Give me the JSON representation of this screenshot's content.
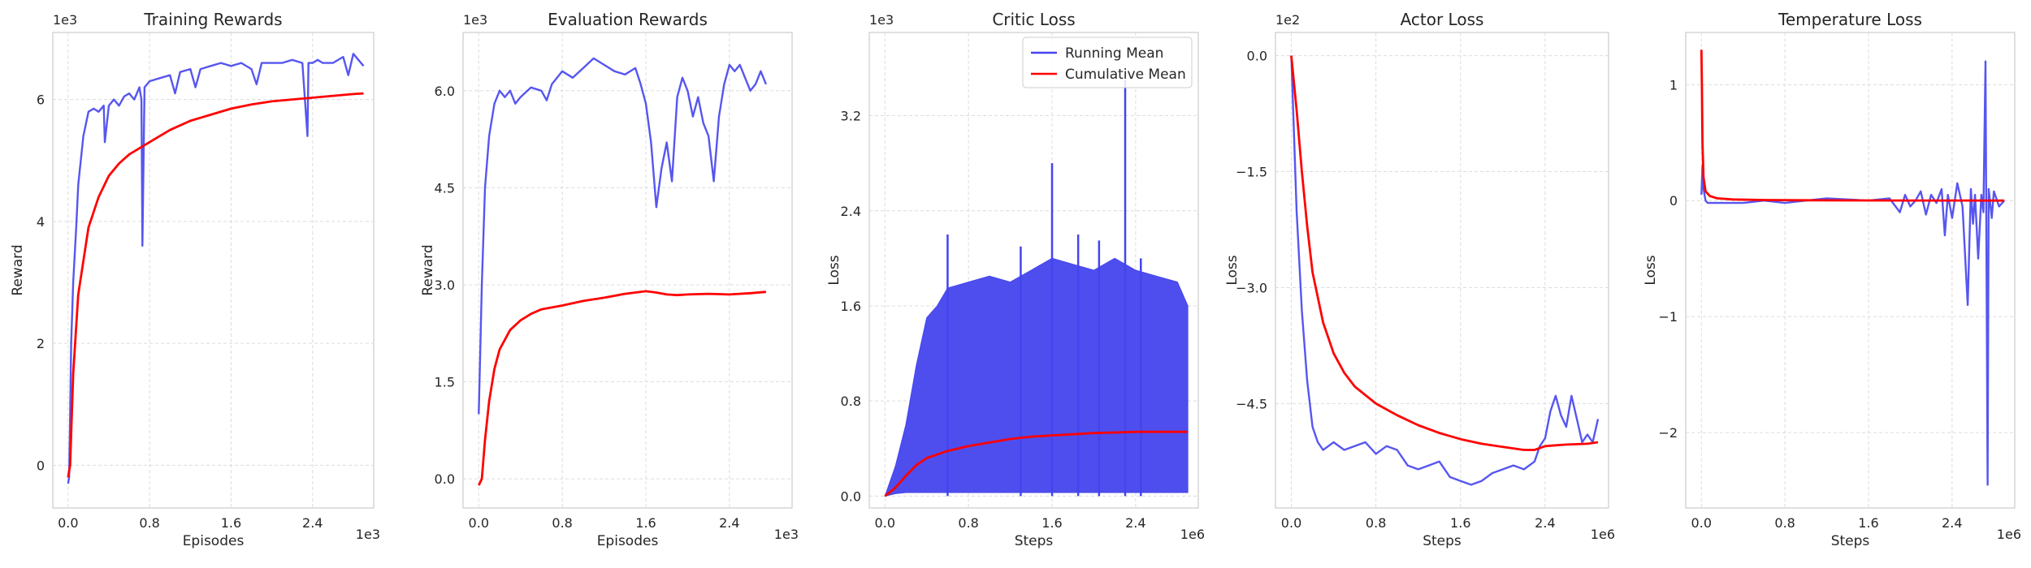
{
  "colors": {
    "running": "#4444ee",
    "cumulative": "#ff0000"
  },
  "chart_data": [
    {
      "type": "line",
      "title": "Training Rewards",
      "xlabel": "Episodes",
      "ylabel": "Reward",
      "x_exponent": "1e3",
      "y_exponent": "1e3",
      "xlim": [
        -0.15,
        3.0
      ],
      "ylim": [
        -0.7,
        7.1
      ],
      "xticks": [
        0.0,
        0.8,
        1.6,
        2.4
      ],
      "xtick_labels": [
        "0.0",
        "0.8",
        "1.6",
        "2.4"
      ],
      "yticks": [
        0,
        2,
        4,
        6
      ],
      "ytick_labels": [
        "0",
        "2",
        "4",
        "6"
      ],
      "grid": true,
      "series": [
        {
          "key": "running",
          "x": [
            0.0,
            0.01,
            0.02,
            0.03,
            0.05,
            0.08,
            0.1,
            0.15,
            0.2,
            0.25,
            0.3,
            0.35,
            0.36,
            0.4,
            0.45,
            0.5,
            0.55,
            0.6,
            0.65,
            0.7,
            0.72,
            0.73,
            0.75,
            0.8,
            0.9,
            1.0,
            1.05,
            1.1,
            1.2,
            1.25,
            1.3,
            1.4,
            1.5,
            1.6,
            1.7,
            1.8,
            1.85,
            1.9,
            2.0,
            2.1,
            2.2,
            2.3,
            2.35,
            2.36,
            2.4,
            2.45,
            2.5,
            2.6,
            2.7,
            2.75,
            2.8,
            2.9
          ],
          "y": [
            -0.3,
            -0.2,
            0.8,
            2.0,
            3.0,
            3.9,
            4.6,
            5.4,
            5.8,
            5.85,
            5.8,
            5.9,
            5.3,
            5.9,
            6.0,
            5.9,
            6.05,
            6.1,
            6.0,
            6.2,
            6.0,
            3.6,
            6.2,
            6.3,
            6.35,
            6.4,
            6.1,
            6.45,
            6.5,
            6.2,
            6.5,
            6.55,
            6.6,
            6.55,
            6.6,
            6.5,
            6.25,
            6.6,
            6.6,
            6.6,
            6.65,
            6.6,
            5.4,
            6.6,
            6.6,
            6.65,
            6.6,
            6.6,
            6.7,
            6.4,
            6.75,
            6.55
          ]
        },
        {
          "key": "cumulative",
          "x": [
            0.0,
            0.02,
            0.05,
            0.1,
            0.2,
            0.3,
            0.4,
            0.5,
            0.6,
            0.8,
            1.0,
            1.2,
            1.4,
            1.6,
            1.8,
            2.0,
            2.2,
            2.4,
            2.6,
            2.8,
            2.9
          ],
          "y": [
            -0.2,
            0.0,
            1.5,
            2.8,
            3.9,
            4.4,
            4.75,
            4.95,
            5.1,
            5.3,
            5.5,
            5.65,
            5.75,
            5.85,
            5.92,
            5.97,
            6.0,
            6.03,
            6.06,
            6.09,
            6.1
          ]
        }
      ]
    },
    {
      "type": "line",
      "title": "Evaluation Rewards",
      "xlabel": "Episodes",
      "ylabel": "Reward",
      "x_exponent": "1e3",
      "y_exponent": "1e3",
      "xlim": [
        -0.15,
        3.0
      ],
      "ylim": [
        -0.45,
        6.9
      ],
      "xticks": [
        0.0,
        0.8,
        1.6,
        2.4
      ],
      "xtick_labels": [
        "0.0",
        "0.8",
        "1.6",
        "2.4"
      ],
      "yticks": [
        0.0,
        1.5,
        3.0,
        4.5,
        6.0
      ],
      "ytick_labels": [
        "0.0",
        "1.5",
        "3.0",
        "4.5",
        "6.0"
      ],
      "grid": true,
      "series": [
        {
          "key": "running",
          "x": [
            0.0,
            0.03,
            0.06,
            0.1,
            0.15,
            0.2,
            0.25,
            0.3,
            0.35,
            0.4,
            0.5,
            0.6,
            0.65,
            0.7,
            0.8,
            0.9,
            1.0,
            1.1,
            1.2,
            1.3,
            1.4,
            1.5,
            1.55,
            1.6,
            1.65,
            1.7,
            1.75,
            1.8,
            1.85,
            1.9,
            1.95,
            2.0,
            2.05,
            2.1,
            2.15,
            2.2,
            2.25,
            2.3,
            2.35,
            2.4,
            2.45,
            2.5,
            2.55,
            2.6,
            2.65,
            2.7,
            2.75
          ],
          "y": [
            1.0,
            3.0,
            4.5,
            5.3,
            5.8,
            6.0,
            5.9,
            6.0,
            5.8,
            5.9,
            6.05,
            6.0,
            5.85,
            6.1,
            6.3,
            6.2,
            6.35,
            6.5,
            6.4,
            6.3,
            6.25,
            6.35,
            6.1,
            5.8,
            5.2,
            4.2,
            4.8,
            5.2,
            4.6,
            5.9,
            6.2,
            6.0,
            5.6,
            5.9,
            5.5,
            5.3,
            4.6,
            5.6,
            6.1,
            6.4,
            6.3,
            6.4,
            6.2,
            6.0,
            6.1,
            6.3,
            6.1
          ]
        },
        {
          "key": "cumulative",
          "x": [
            0.0,
            0.03,
            0.06,
            0.1,
            0.15,
            0.2,
            0.3,
            0.4,
            0.5,
            0.6,
            0.8,
            1.0,
            1.2,
            1.4,
            1.6,
            1.7,
            1.8,
            1.9,
            2.0,
            2.2,
            2.4,
            2.6,
            2.75
          ],
          "y": [
            -0.1,
            0.0,
            0.6,
            1.2,
            1.7,
            2.0,
            2.3,
            2.45,
            2.55,
            2.62,
            2.68,
            2.75,
            2.8,
            2.86,
            2.9,
            2.88,
            2.85,
            2.84,
            2.85,
            2.86,
            2.85,
            2.87,
            2.89
          ]
        }
      ]
    },
    {
      "type": "line",
      "title": "Critic Loss",
      "xlabel": "Steps",
      "ylabel": "Loss",
      "x_exponent": "1e6",
      "y_exponent": "1e3",
      "xlim": [
        -0.15,
        3.0
      ],
      "ylim": [
        -0.1,
        3.9
      ],
      "xticks": [
        0.0,
        0.8,
        1.6,
        2.4
      ],
      "xtick_labels": [
        "0.0",
        "0.8",
        "1.6",
        "2.4"
      ],
      "yticks": [
        0.0,
        0.8,
        1.6,
        2.4,
        3.2
      ],
      "ytick_labels": [
        "0.0",
        "0.8",
        "1.6",
        "2.4",
        "3.2"
      ],
      "grid": true,
      "legend": {
        "position": "top-right",
        "entries": [
          "Running Mean",
          "Cumulative Mean"
        ]
      },
      "series": [
        {
          "key": "running",
          "style": "band",
          "x": [
            0.0,
            0.1,
            0.2,
            0.3,
            0.4,
            0.5,
            0.6,
            0.8,
            1.0,
            1.2,
            1.4,
            1.6,
            1.8,
            2.0,
            2.2,
            2.4,
            2.6,
            2.8,
            2.9
          ],
          "y_high": [
            0.0,
            0.25,
            0.6,
            1.1,
            1.5,
            1.6,
            1.75,
            1.8,
            1.85,
            1.8,
            1.9,
            2.0,
            1.95,
            1.9,
            2.0,
            1.9,
            1.85,
            1.8,
            1.6
          ],
          "y_low": [
            0.0,
            0.02,
            0.03,
            0.03,
            0.03,
            0.03,
            0.03,
            0.03,
            0.03,
            0.03,
            0.03,
            0.03,
            0.03,
            0.03,
            0.03,
            0.03,
            0.03,
            0.03,
            0.03
          ],
          "spikes": [
            [
              0.6,
              2.2
            ],
            [
              1.3,
              2.1
            ],
            [
              1.6,
              2.8
            ],
            [
              1.85,
              2.2
            ],
            [
              2.05,
              2.15
            ],
            [
              2.3,
              3.5
            ],
            [
              2.45,
              2.0
            ]
          ]
        },
        {
          "key": "cumulative",
          "x": [
            0.0,
            0.1,
            0.2,
            0.3,
            0.4,
            0.6,
            0.8,
            1.0,
            1.2,
            1.4,
            1.6,
            1.8,
            2.0,
            2.2,
            2.4,
            2.6,
            2.9
          ],
          "y": [
            0.0,
            0.07,
            0.17,
            0.26,
            0.32,
            0.38,
            0.42,
            0.45,
            0.48,
            0.5,
            0.51,
            0.52,
            0.53,
            0.535,
            0.54,
            0.54,
            0.54
          ]
        }
      ]
    },
    {
      "type": "line",
      "title": "Actor Loss",
      "xlabel": "Steps",
      "ylabel": "Loss",
      "x_exponent": "1e6",
      "y_exponent": "1e2",
      "xlim": [
        -0.15,
        3.0
      ],
      "ylim": [
        -5.85,
        0.3
      ],
      "xticks": [
        0.0,
        0.8,
        1.6,
        2.4
      ],
      "xtick_labels": [
        "0.0",
        "0.8",
        "1.6",
        "2.4"
      ],
      "yticks": [
        0.0,
        -1.5,
        -3.0,
        -4.5
      ],
      "ytick_labels": [
        "0.0",
        "−1.5",
        "−3.0",
        "−4.5"
      ],
      "grid": true,
      "series": [
        {
          "key": "running",
          "x": [
            0.0,
            0.02,
            0.05,
            0.1,
            0.15,
            0.2,
            0.25,
            0.3,
            0.35,
            0.4,
            0.5,
            0.6,
            0.7,
            0.8,
            0.9,
            1.0,
            1.1,
            1.2,
            1.3,
            1.4,
            1.5,
            1.6,
            1.7,
            1.8,
            1.9,
            2.0,
            2.1,
            2.2,
            2.3,
            2.35,
            2.4,
            2.45,
            2.5,
            2.55,
            2.6,
            2.65,
            2.7,
            2.75,
            2.8,
            2.85,
            2.9
          ],
          "y": [
            0.0,
            -0.8,
            -2.0,
            -3.3,
            -4.2,
            -4.8,
            -5.0,
            -5.1,
            -5.05,
            -5.0,
            -5.1,
            -5.05,
            -5.0,
            -5.15,
            -5.05,
            -5.1,
            -5.3,
            -5.35,
            -5.3,
            -5.25,
            -5.45,
            -5.5,
            -5.55,
            -5.5,
            -5.4,
            -5.35,
            -5.3,
            -5.35,
            -5.25,
            -5.05,
            -4.95,
            -4.6,
            -4.4,
            -4.65,
            -4.8,
            -4.4,
            -4.7,
            -5.0,
            -4.9,
            -5.0,
            -4.7
          ]
        },
        {
          "key": "cumulative",
          "x": [
            0.0,
            0.05,
            0.1,
            0.15,
            0.2,
            0.3,
            0.4,
            0.5,
            0.6,
            0.8,
            1.0,
            1.2,
            1.4,
            1.6,
            1.8,
            2.0,
            2.2,
            2.3,
            2.4,
            2.5,
            2.6,
            2.8,
            2.9
          ],
          "y": [
            0.0,
            -0.7,
            -1.5,
            -2.2,
            -2.8,
            -3.45,
            -3.85,
            -4.1,
            -4.28,
            -4.5,
            -4.65,
            -4.78,
            -4.88,
            -4.96,
            -5.02,
            -5.06,
            -5.1,
            -5.1,
            -5.05,
            -5.04,
            -5.03,
            -5.02,
            -5.0
          ]
        }
      ]
    },
    {
      "type": "line",
      "title": "Temperature Loss",
      "xlabel": "Steps",
      "ylabel": "Loss",
      "x_exponent": "1e6",
      "y_exponent": "",
      "xlim": [
        -0.15,
        3.0
      ],
      "ylim": [
        -2.65,
        1.45
      ],
      "xticks": [
        0.0,
        0.8,
        1.6,
        2.4
      ],
      "xtick_labels": [
        "0.0",
        "0.8",
        "1.6",
        "2.4"
      ],
      "yticks": [
        1,
        0,
        -1,
        -2
      ],
      "ytick_labels": [
        "1",
        "0",
        "−1",
        "−2"
      ],
      "grid": true,
      "series": [
        {
          "key": "running",
          "x": [
            0.0,
            0.01,
            0.02,
            0.04,
            0.06,
            0.1,
            0.2,
            0.4,
            0.6,
            0.8,
            1.0,
            1.2,
            1.4,
            1.6,
            1.8,
            1.9,
            1.95,
            2.0,
            2.05,
            2.1,
            2.15,
            2.2,
            2.25,
            2.3,
            2.33,
            2.36,
            2.4,
            2.45,
            2.5,
            2.55,
            2.58,
            2.6,
            2.62,
            2.65,
            2.68,
            2.7,
            2.72,
            2.74,
            2.75,
            2.78,
            2.8,
            2.85,
            2.9
          ],
          "y": [
            0.05,
            0.3,
            0.1,
            0.0,
            -0.02,
            -0.02,
            -0.02,
            -0.02,
            0.0,
            -0.02,
            0.0,
            0.02,
            0.01,
            0.0,
            0.02,
            -0.1,
            0.05,
            -0.05,
            0.0,
            0.08,
            -0.12,
            0.05,
            -0.02,
            0.1,
            -0.3,
            0.05,
            -0.15,
            0.15,
            -0.05,
            -0.9,
            0.1,
            -0.2,
            0.05,
            -0.5,
            0.05,
            -0.1,
            1.2,
            -2.45,
            0.1,
            -0.15,
            0.08,
            -0.05,
            0.0
          ]
        },
        {
          "key": "cumulative",
          "x": [
            0.0,
            0.005,
            0.01,
            0.02,
            0.04,
            0.08,
            0.15,
            0.3,
            0.6,
            1.0,
            1.5,
            2.0,
            2.5,
            2.9
          ],
          "y": [
            1.3,
            1.0,
            0.5,
            0.2,
            0.08,
            0.04,
            0.02,
            0.01,
            0.005,
            0.003,
            0.002,
            0.001,
            0.001,
            0.0
          ]
        }
      ]
    }
  ]
}
